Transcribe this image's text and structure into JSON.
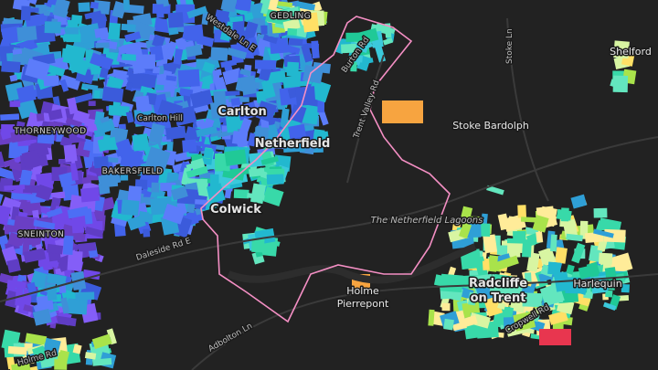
{
  "labels": {
    "gedling": "GEDLING",
    "westdale": "Westdale Ln E",
    "carlton_hill": "Carlton Hill",
    "carlton": "Carlton",
    "thorneywood": "THORNEYWOOD",
    "netherfield": "Netherfield",
    "bakersfield": "BAKERSFIELD",
    "colwick": "Colwick",
    "sneinton": "SNEINTON",
    "daleside": "Daleside Rd E",
    "burton_rd": "Burton Rd",
    "trent_valley": "Trent Valley Rd",
    "stoke_ln": "Stoke Ln",
    "stoke_bardolph": "Stoke Bardolph",
    "shelford": "Shelford",
    "lagoons": "The Netherfield Lagoons",
    "holme_pierrepont": [
      "Holme",
      "Pierrepont"
    ],
    "adbolton": "Adbolton Ln",
    "radcliffe": [
      "Radcliffe",
      "on Trent"
    ],
    "harlequin": "Harlequin",
    "cropwell": "Cropwell Rd",
    "holme_rd": "Holme Rd"
  }
}
